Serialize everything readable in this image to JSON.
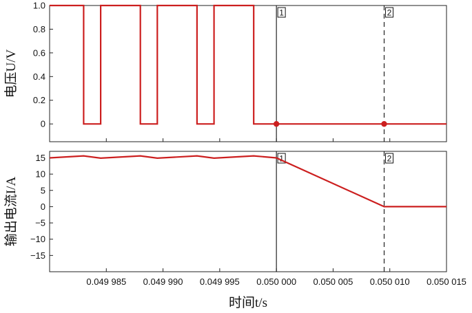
{
  "colors": {
    "series": "#cc1f1f",
    "axis": "#222222",
    "background": "#ffffff"
  },
  "chart_data": [
    {
      "type": "line",
      "ylabel": "电压U/V",
      "xlim": [
        0.04998,
        0.050015
      ],
      "ylim": [
        -0.15,
        1.0
      ],
      "yticks": [
        0,
        0.2,
        0.4,
        0.6,
        0.8,
        1.0
      ],
      "ytick_labels": [
        "0",
        "0.2",
        "0.4",
        "0.6",
        "0.8",
        "1.0"
      ],
      "grid": false,
      "series": [
        {
          "x": [
            0.04998,
            0.049983,
            0.049983,
            0.0499845,
            0.0499845,
            0.049988,
            0.049988,
            0.0499895,
            0.0499895,
            0.049993,
            0.049993,
            0.0499945,
            0.0499945,
            0.049998,
            0.049998,
            0.050015
          ],
          "y": [
            1,
            1,
            0,
            0,
            1,
            1,
            0,
            0,
            1,
            1,
            0,
            0,
            1,
            1,
            0,
            0
          ]
        }
      ],
      "points": [
        {
          "x": 0.05,
          "y": 0
        },
        {
          "x": 0.0500095,
          "y": 0
        }
      ]
    },
    {
      "type": "line",
      "ylabel": "输出电流I/A",
      "xlabel": "时间t/s",
      "xlim": [
        0.04998,
        0.050015
      ],
      "ylim": [
        -20,
        17
      ],
      "yticks": [
        15,
        10,
        5,
        0,
        -5,
        -10,
        -15
      ],
      "ytick_labels": [
        "15",
        "10",
        "5",
        "0",
        "−5",
        "−10",
        "−15"
      ],
      "xticks": [
        0.049985,
        0.04999,
        0.049995,
        0.05,
        0.050005,
        0.05001,
        0.050015
      ],
      "xtick_labels": [
        "0.049 985",
        "0.049 990",
        "0.049 995",
        "0.050 000",
        "0.050 005",
        "0.050 010",
        "0.050 015"
      ],
      "grid": false,
      "series": [
        {
          "x": [
            0.04998,
            0.049983,
            0.0499845,
            0.049988,
            0.0499895,
            0.049993,
            0.0499945,
            0.049998,
            0.05,
            0.0500095,
            0.050015
          ],
          "y": [
            15.0,
            15.6,
            14.9,
            15.6,
            14.9,
            15.6,
            14.9,
            15.6,
            15.0,
            0,
            0
          ]
        }
      ]
    }
  ],
  "markers": [
    {
      "label": "1",
      "x": 0.05,
      "style": "solid"
    },
    {
      "label": "2",
      "x": 0.0500095,
      "style": "dashed"
    }
  ]
}
